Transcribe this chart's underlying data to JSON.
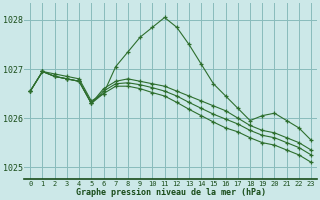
{
  "title": "Graphe pression niveau de la mer (hPa)",
  "bg_color": "#cce8e8",
  "grid_color": "#88bbbb",
  "line_color": "#2d6e2d",
  "marker_color": "#2d6e2d",
  "label_color": "#1a4d1a",
  "ylim": [
    1024.75,
    1028.35
  ],
  "xlim": [
    -0.5,
    23.5
  ],
  "yticks": [
    1025,
    1026,
    1027,
    1028
  ],
  "xticks": [
    0,
    1,
    2,
    3,
    4,
    5,
    6,
    7,
    8,
    9,
    10,
    11,
    12,
    13,
    14,
    15,
    16,
    17,
    18,
    19,
    20,
    21,
    22,
    23
  ],
  "series": [
    [
      1026.55,
      1026.95,
      1026.9,
      1026.85,
      1026.8,
      1026.35,
      1026.5,
      1027.05,
      1027.35,
      1027.65,
      1027.85,
      1028.05,
      1027.85,
      1027.5,
      1027.1,
      1026.7,
      1026.45,
      1026.2,
      1025.95,
      1026.05,
      1026.1,
      1025.95,
      1025.8,
      1025.55
    ],
    [
      1026.55,
      1026.95,
      1026.85,
      1026.8,
      1026.75,
      1026.3,
      1026.6,
      1026.75,
      1026.8,
      1026.75,
      1026.7,
      1026.65,
      1026.55,
      1026.45,
      1026.35,
      1026.25,
      1026.15,
      1026.0,
      1025.85,
      1025.75,
      1025.7,
      1025.6,
      1025.5,
      1025.35
    ],
    [
      1026.55,
      1026.95,
      1026.85,
      1026.8,
      1026.75,
      1026.3,
      1026.55,
      1026.7,
      1026.72,
      1026.68,
      1026.62,
      1026.55,
      1026.45,
      1026.32,
      1026.2,
      1026.08,
      1025.98,
      1025.88,
      1025.75,
      1025.65,
      1025.6,
      1025.5,
      1025.4,
      1025.25
    ],
    [
      1026.55,
      1026.95,
      1026.85,
      1026.8,
      1026.75,
      1026.3,
      1026.5,
      1026.65,
      1026.65,
      1026.6,
      1026.52,
      1026.45,
      1026.32,
      1026.18,
      1026.05,
      1025.92,
      1025.8,
      1025.72,
      1025.6,
      1025.5,
      1025.45,
      1025.35,
      1025.25,
      1025.1
    ]
  ]
}
